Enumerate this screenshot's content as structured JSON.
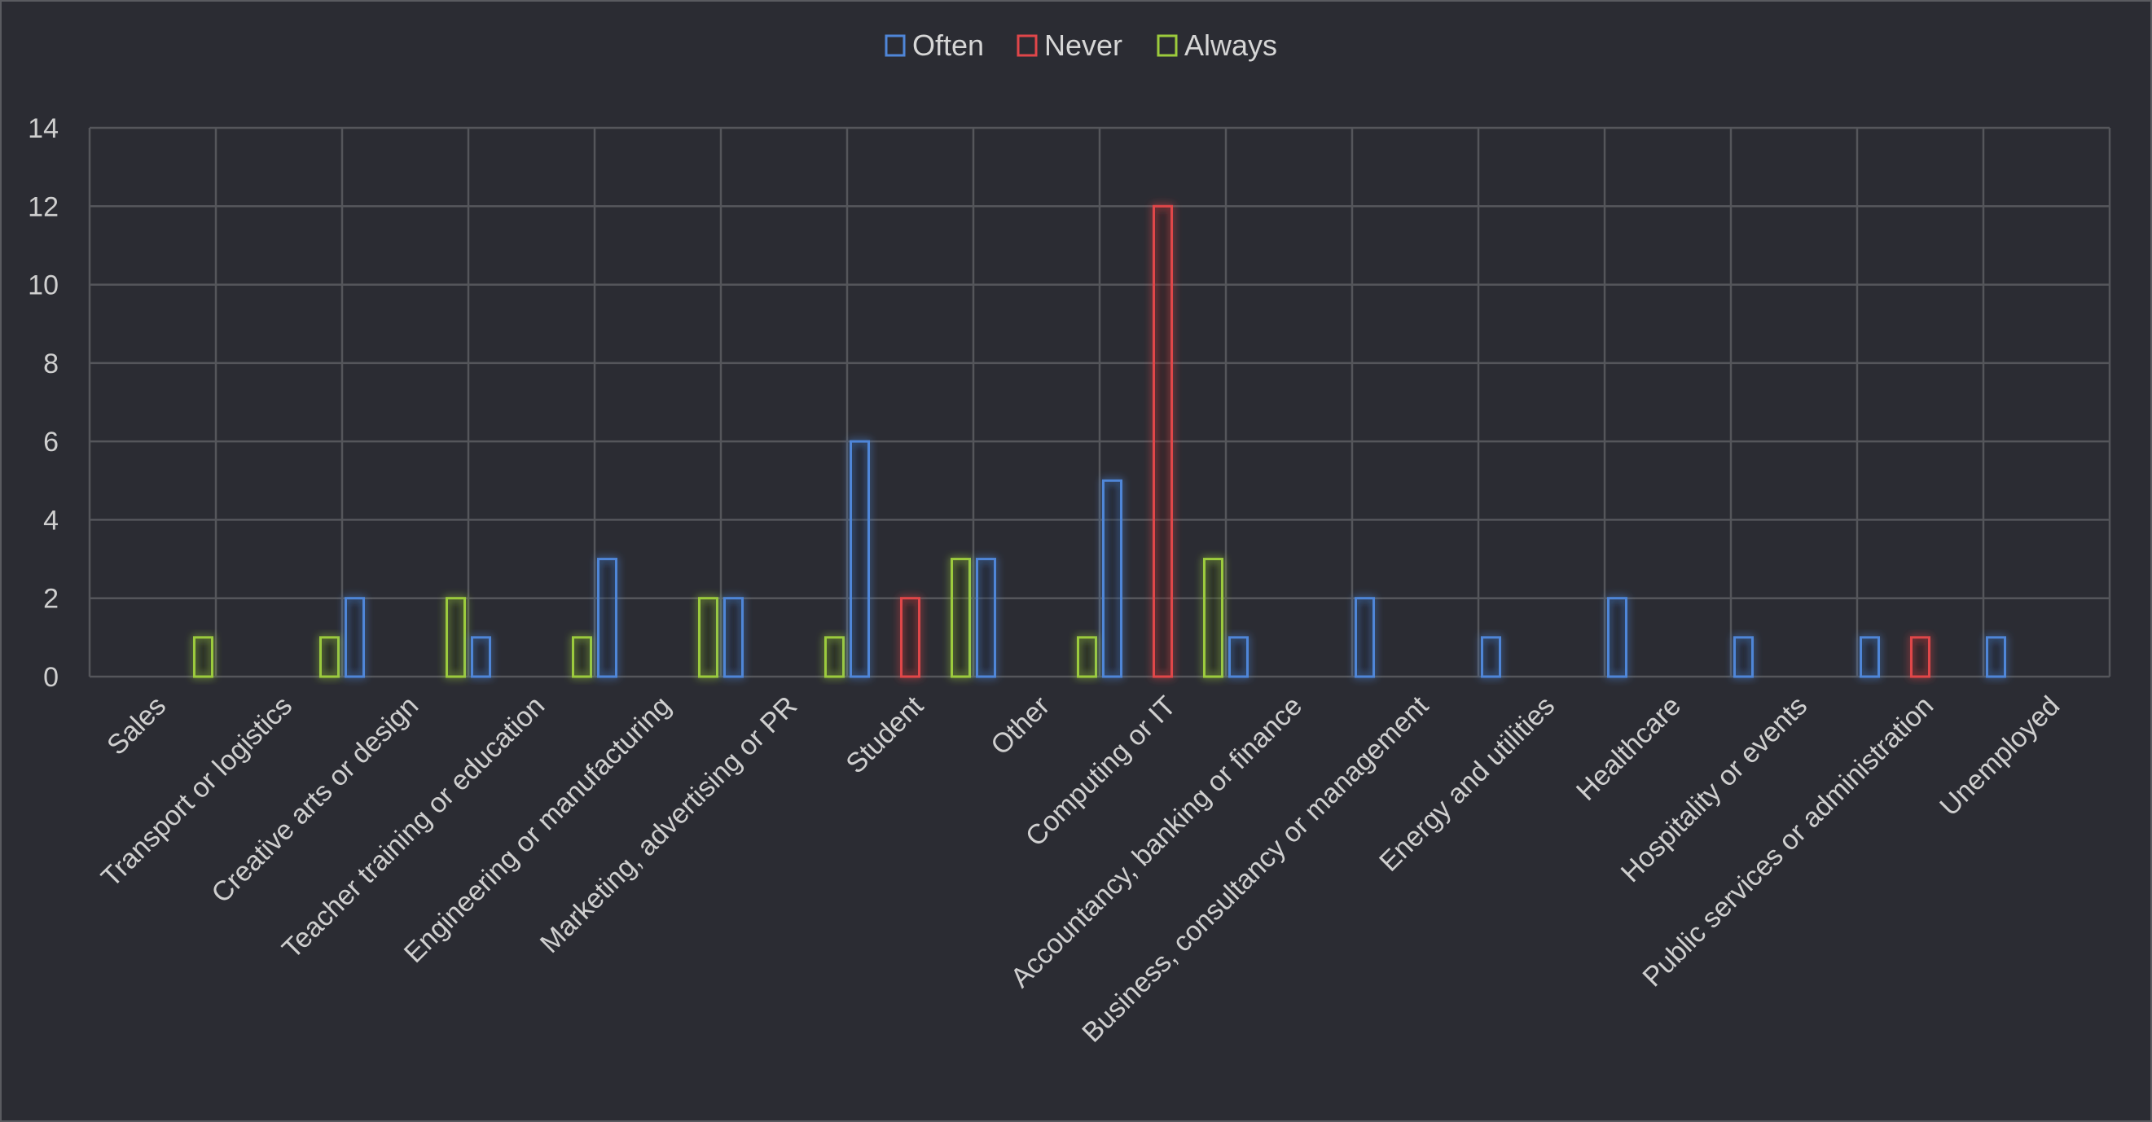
{
  "chart_data": {
    "type": "bar",
    "title": "",
    "xlabel": "",
    "ylabel": "",
    "ylim": [
      0,
      14
    ],
    "yticks": [
      0,
      2,
      4,
      6,
      8,
      10,
      12,
      14
    ],
    "grid": true,
    "legend_position": "top-center",
    "categories": [
      "Sales",
      "Transport or logistics",
      "Creative arts or design",
      "Teacher training or education",
      "Engineering or manufacturing",
      "Marketing, advertising or PR",
      "Student",
      "Other",
      "Computing or IT",
      "Accountancy, banking or finance",
      "Business, consultancy or management",
      "Energy and utilities",
      "Healthcare",
      "Hospitality or events",
      "Public services or administration",
      "Unemployed"
    ],
    "series": [
      {
        "name": "Often",
        "color": "#4f86d8",
        "values": [
          0,
          0,
          2,
          1,
          3,
          2,
          6,
          3,
          5,
          1,
          2,
          1,
          2,
          1,
          1,
          1
        ]
      },
      {
        "name": "Never",
        "color": "#e0464a",
        "values": [
          0,
          0,
          0,
          0,
          0,
          0,
          2,
          0,
          12,
          0,
          0,
          0,
          0,
          0,
          1,
          0
        ]
      },
      {
        "name": "Always",
        "color": "#9ccb3c",
        "values": [
          1,
          1,
          2,
          1,
          2,
          1,
          3,
          1,
          3,
          0,
          0,
          0,
          0,
          0,
          0,
          0
        ]
      }
    ]
  }
}
